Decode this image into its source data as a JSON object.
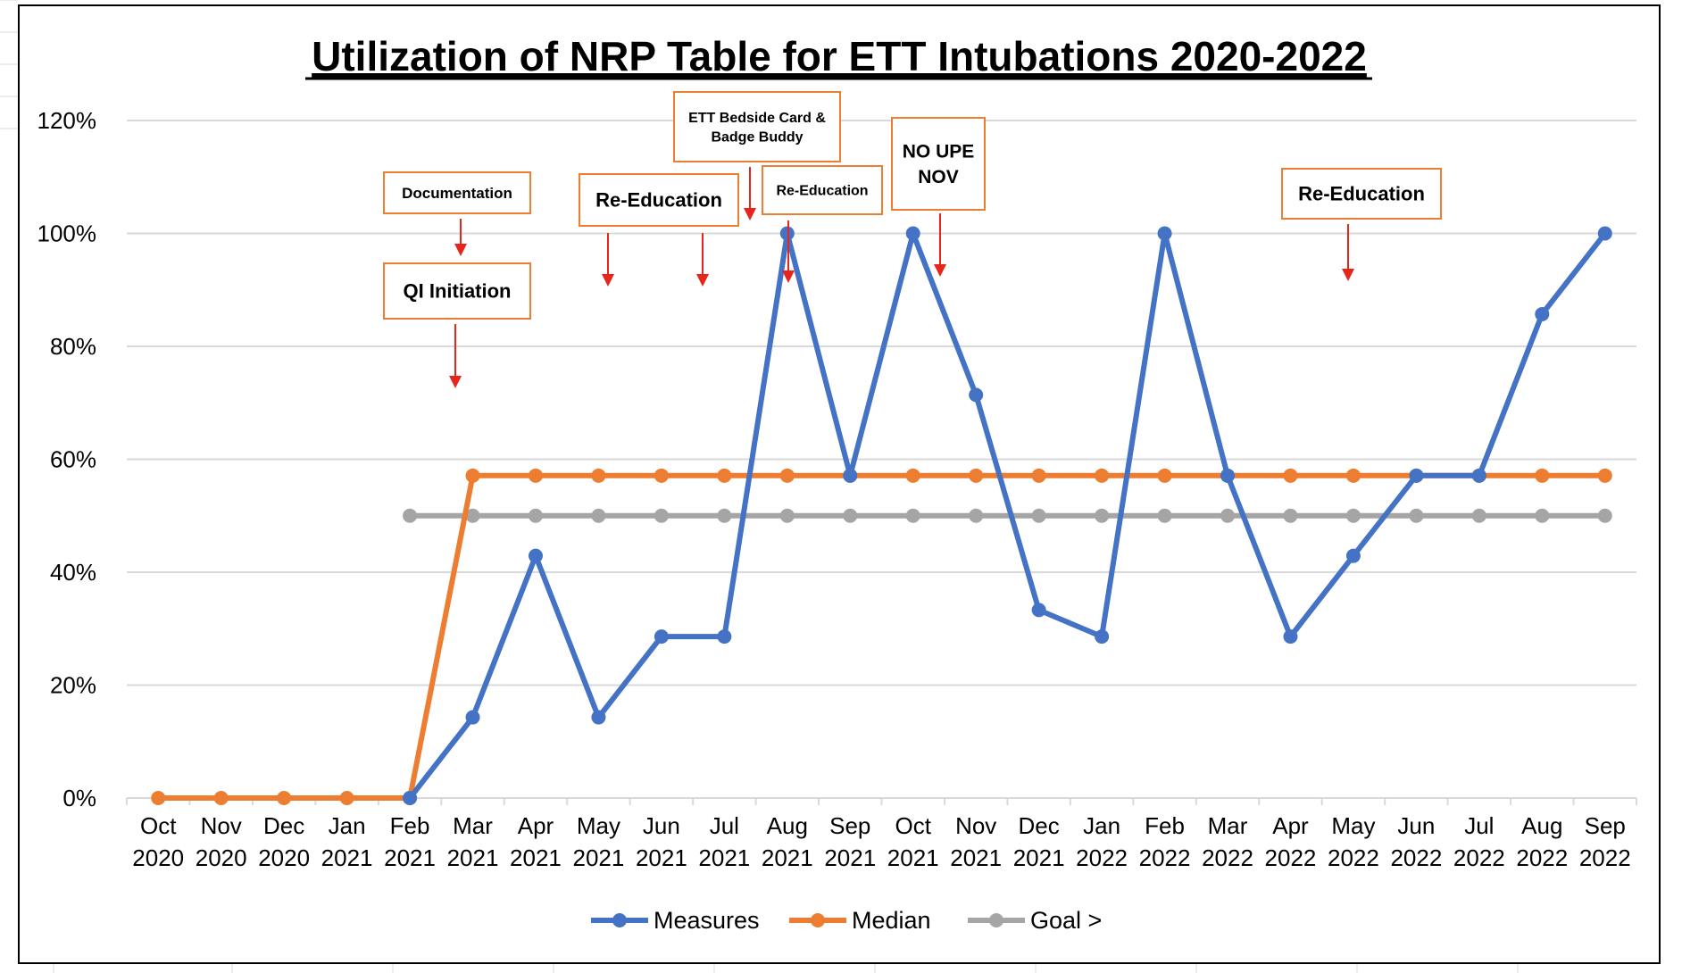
{
  "chart_data": {
    "type": "line",
    "title": "Utilization of NRP Table for ETT Intubations 2020-2022",
    "categories": [
      [
        "Oct",
        "2020"
      ],
      [
        "Nov",
        "2020"
      ],
      [
        "Dec",
        "2020"
      ],
      [
        "Jan",
        "2021"
      ],
      [
        "Feb",
        "2021"
      ],
      [
        "Mar",
        "2021"
      ],
      [
        "Apr",
        "2021"
      ],
      [
        "May",
        "2021"
      ],
      [
        "Jun",
        "2021"
      ],
      [
        "Jul",
        "2021"
      ],
      [
        "Aug",
        "2021"
      ],
      [
        "Sep",
        "2021"
      ],
      [
        "Oct",
        "2021"
      ],
      [
        "Nov",
        "2021"
      ],
      [
        "Dec",
        "2021"
      ],
      [
        "Jan",
        "2022"
      ],
      [
        "Feb",
        "2022"
      ],
      [
        "Mar",
        "2022"
      ],
      [
        "Apr",
        "2022"
      ],
      [
        "May",
        "2022"
      ],
      [
        "Jun",
        "2022"
      ],
      [
        "Jul",
        "2022"
      ],
      [
        "Aug",
        "2022"
      ],
      [
        "Sep",
        "2022"
      ]
    ],
    "yticks": [
      "0%",
      "20%",
      "40%",
      "60%",
      "80%",
      "100%",
      "120%"
    ],
    "ylim": [
      0,
      1.2
    ],
    "grid": "horizontal",
    "legend_position": "bottom",
    "series": [
      {
        "name": "Measures",
        "color": "#4472C4",
        "values": [
          null,
          null,
          null,
          null,
          0,
          0.143,
          0.429,
          0.143,
          0.286,
          0.286,
          1.0,
          0.571,
          1.0,
          0.714,
          0.333,
          0.286,
          1.0,
          0.571,
          0.286,
          0.429,
          0.571,
          0.571,
          0.857,
          1.0
        ]
      },
      {
        "name": "Median",
        "color": "#ED7D31",
        "values": [
          0,
          0,
          0,
          0,
          0,
          0.571,
          0.571,
          0.571,
          0.571,
          0.571,
          0.571,
          0.571,
          0.571,
          0.571,
          0.571,
          0.571,
          0.571,
          0.571,
          0.571,
          0.571,
          0.571,
          0.571,
          0.571,
          0.571
        ]
      },
      {
        "name": "Goal >",
        "color": "#A5A5A5",
        "values": [
          null,
          null,
          null,
          null,
          0.5,
          0.5,
          0.5,
          0.5,
          0.5,
          0.5,
          0.5,
          0.5,
          0.5,
          0.5,
          0.5,
          0.5,
          0.5,
          0.5,
          0.5,
          0.5,
          0.5,
          0.5,
          0.5,
          0.5
        ]
      }
    ],
    "annotations": [
      {
        "lines": [
          "Documentation"
        ]
      },
      {
        "lines": [
          "QI Initiation"
        ]
      },
      {
        "lines": [
          "Re-Education"
        ]
      },
      {
        "lines": [
          "ETT Bedside Card &",
          "Badge Buddy"
        ]
      },
      {
        "lines": [
          "Re-Education"
        ]
      },
      {
        "lines": [
          "NO UPE",
          "NOV"
        ]
      },
      {
        "lines": [
          "Re-Education"
        ]
      }
    ],
    "annotation_box_color": "#ED7D31",
    "arrow_color": "#E8251B"
  }
}
